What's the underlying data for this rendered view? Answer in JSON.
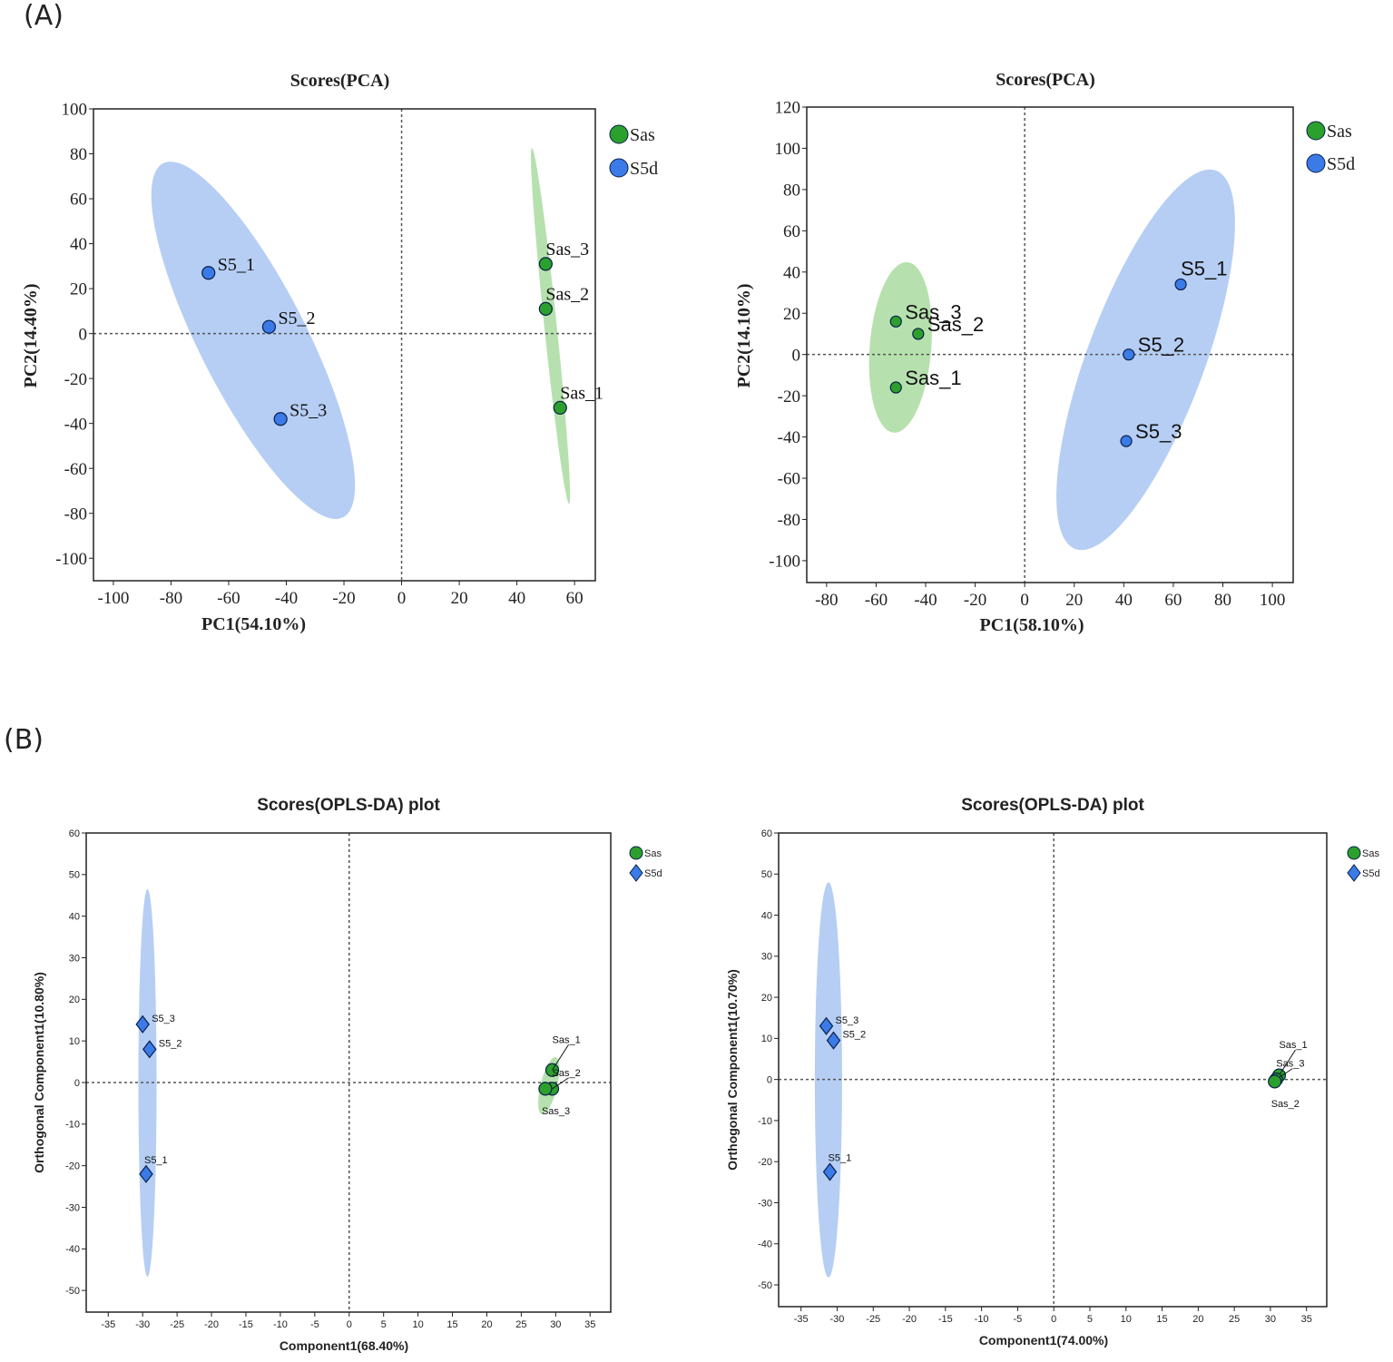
{
  "panels": {
    "a": "(A)",
    "b": "(B)"
  },
  "colors": {
    "sas_fill": "#2ca02c",
    "s5d_fill": "#3b7be8",
    "sas_ellipse": "#a9dca0",
    "s5d_ellipse": "#a9c6f2",
    "marker_stroke": "#0a1f4a"
  },
  "chart_data": [
    {
      "type": "scatter",
      "title": "Scores(PCA)",
      "xlabel": "PC1(54.10%)",
      "ylabel": "PC2(14.40%)",
      "xlim": [
        -106.9,
        67.2
      ],
      "ylim": [
        -110,
        100
      ],
      "xticks": [
        -100,
        -80,
        -60,
        -40,
        -20,
        0,
        20,
        40,
        60
      ],
      "yticks": [
        100,
        80,
        60,
        40,
        20,
        0,
        -20,
        -40,
        -60,
        -80,
        -100
      ],
      "legend": {
        "position": "top-right",
        "entries": [
          {
            "name": "Sas",
            "marker": "circle"
          },
          {
            "name": "S5d",
            "marker": "circle"
          }
        ]
      },
      "series": [
        {
          "name": "Sas",
          "marker": "circle",
          "points": [
            {
              "label": "Sas_3",
              "x": 50,
              "y": 31,
              "place": "above"
            },
            {
              "label": "Sas_2",
              "x": 50,
              "y": 11,
              "place": "above"
            },
            {
              "label": "Sas_1",
              "x": 55,
              "y": -33,
              "place": "above"
            }
          ],
          "ellipse": {
            "p1": [
              45.2,
              82.6
            ],
            "p2": [
              58.1,
              -75.8
            ],
            "ratio": 0.035
          }
        },
        {
          "name": "S5d",
          "marker": "circle",
          "points": [
            {
              "label": "S5_1",
              "x": -67,
              "y": 27,
              "place": "right"
            },
            {
              "label": "S5_2",
              "x": -46,
              "y": 3,
              "place": "right"
            },
            {
              "label": "S5_3",
              "x": -42,
              "y": -38,
              "place": "right"
            }
          ],
          "ellipse": {
            "p1": [
              -82.7,
              75.8
            ],
            "p2": [
              -20.3,
              -81.8
            ],
            "ratio": 0.27
          }
        }
      ]
    },
    {
      "type": "scatter",
      "title": "Scores(PCA)",
      "xlabel": "PC1(58.10%)",
      "ylabel": "PC2(14.10%)",
      "xlim": [
        -88,
        108.4
      ],
      "ylim": [
        -110.6,
        120
      ],
      "xticks": [
        -80,
        -60,
        -40,
        -20,
        0,
        20,
        40,
        60,
        80,
        100
      ],
      "yticks": [
        120,
        100,
        80,
        60,
        40,
        20,
        0,
        -20,
        -40,
        -60,
        -80,
        -100
      ],
      "legend": {
        "position": "top-right",
        "entries": [
          {
            "name": "Sas",
            "marker": "circle"
          },
          {
            "name": "S5d",
            "marker": "circle"
          }
        ]
      },
      "series": [
        {
          "name": "Sas",
          "marker": "circle",
          "points": [
            {
              "label": "Sas_3",
              "x": -52,
              "y": 16,
              "place": "right"
            },
            {
              "label": "Sas_2",
              "x": -43,
              "y": 10,
              "place": "right"
            },
            {
              "label": "Sas_1",
              "x": -52,
              "y": -16,
              "place": "right"
            }
          ],
          "ellipse": {
            "p1": [
              -47.4,
              44.8
            ],
            "p2": [
              -52.9,
              -37.9
            ],
            "ratio": 0.36
          }
        },
        {
          "name": "S5d",
          "marker": "circle",
          "points": [
            {
              "label": "S5_1",
              "x": 63,
              "y": 34,
              "place": "above"
            },
            {
              "label": "S5_2",
              "x": 42,
              "y": 0,
              "place": "right"
            },
            {
              "label": "S5_3",
              "x": 41,
              "y": -42,
              "place": "right"
            }
          ],
          "ellipse": {
            "p1": [
              77.3,
              89.2
            ],
            "p2": [
              20.4,
              -94.3
            ],
            "ratio": 0.29
          }
        }
      ]
    },
    {
      "type": "scatter",
      "title": "Scores(OPLS-DA) plot",
      "xlabel": "Component1(68.40%)",
      "ylabel": "Orthogonal Component1(10.80%)",
      "xlim": [
        -38.2,
        38
      ],
      "ylim": [
        -55.2,
        60
      ],
      "xticks": [
        -35,
        -30,
        -25,
        -20,
        -15,
        -10,
        -5,
        0,
        5,
        10,
        15,
        20,
        25,
        30,
        35
      ],
      "yticks": [
        60,
        50,
        40,
        30,
        20,
        10,
        0,
        -10,
        -20,
        -30,
        -40,
        -50
      ],
      "legend": {
        "position": "top-right",
        "entries": [
          {
            "name": "Sas",
            "marker": "circle"
          },
          {
            "name": "S5d",
            "marker": "diamond"
          }
        ]
      },
      "series": [
        {
          "name": "Sas",
          "marker": "circle",
          "points": [
            {
              "label": "Sas_1",
              "x": 29.5,
              "y": 3,
              "place": "lead1"
            },
            {
              "label": "Sas_2",
              "x": 29.5,
              "y": -1.5,
              "place": "lead2"
            },
            {
              "label": "Sas_3",
              "x": 28.5,
              "y": -1.5,
              "place": "below"
            }
          ],
          "ellipse": {
            "p1": [
              30,
              6.1
            ],
            "p2": [
              28,
              -7.7
            ],
            "ratio": 0.28
          }
        },
        {
          "name": "S5d",
          "marker": "diamond",
          "points": [
            {
              "label": "S5_3",
              "x": -30,
              "y": 14,
              "place": "right"
            },
            {
              "label": "S5_2",
              "x": -29,
              "y": 8,
              "place": "right"
            },
            {
              "label": "S5_1",
              "x": -29.5,
              "y": -22,
              "place": "above"
            }
          ],
          "ellipse": {
            "p1": [
              -29.3,
              46.5
            ],
            "p2": [
              -29.3,
              -46.7
            ],
            "ratio": 0.047
          }
        }
      ]
    },
    {
      "type": "scatter",
      "title": "Scores(OPLS-DA) plot",
      "xlabel": "Component1(74.00%)",
      "ylabel": "Orthogonal Component1(10.70%)",
      "xlim": [
        -38.1,
        37.8
      ],
      "ylim": [
        -55.3,
        60
      ],
      "xticks": [
        -35,
        -30,
        -25,
        -20,
        -15,
        -10,
        -5,
        0,
        5,
        10,
        15,
        20,
        25,
        30,
        35
      ],
      "yticks": [
        60,
        50,
        40,
        30,
        20,
        10,
        0,
        -10,
        -20,
        -30,
        -40,
        -50
      ],
      "legend": {
        "position": "top-right",
        "entries": [
          {
            "name": "Sas",
            "marker": "circle"
          },
          {
            "name": "S5d",
            "marker": "diamond"
          }
        ]
      },
      "series": [
        {
          "name": "Sas",
          "marker": "circle",
          "points": [
            {
              "label": "Sas_1",
              "x": 31.2,
              "y": 1,
              "place": "lead1"
            },
            {
              "label": "Sas_3",
              "x": 30.8,
              "y": 0,
              "place": "lead2"
            },
            {
              "label": "Sas_2",
              "x": 30.6,
              "y": -0.5,
              "place": "below"
            }
          ],
          "ellipse": {
            "p1": [
              31.5,
              1.8
            ],
            "p2": [
              30.5,
              -1.2
            ],
            "ratio": 0.6
          }
        },
        {
          "name": "S5d",
          "marker": "diamond",
          "points": [
            {
              "label": "S5_3",
              "x": -31.5,
              "y": 13,
              "place": "right"
            },
            {
              "label": "S5_2",
              "x": -30.5,
              "y": 9.5,
              "place": "right"
            },
            {
              "label": "S5_1",
              "x": -31,
              "y": -22.5,
              "place": "above"
            }
          ],
          "ellipse": {
            "p1": [
              -31.2,
              48
            ],
            "p2": [
              -31.2,
              -48.2
            ],
            "ratio": 0.069
          }
        }
      ]
    }
  ]
}
